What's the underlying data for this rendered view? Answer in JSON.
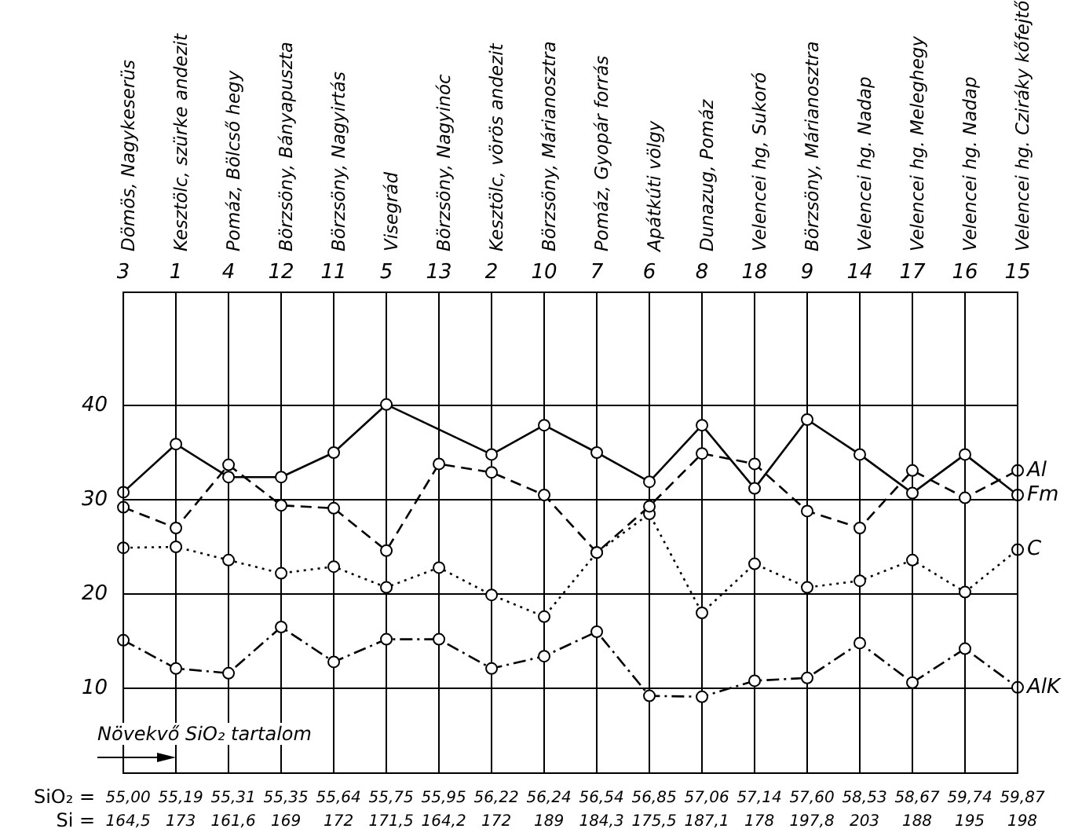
{
  "chart_data": {
    "type": "line",
    "categories": [
      "Dömös, Nagykeserüs",
      "Kesztölc, szürke andezit",
      "Pomáz, Bölcső hegy",
      "Börzsöny, Bányapuszta",
      "Börzsöny, Nagyirtás",
      "Visegrád",
      "Börzsöny, Nagyinóc",
      "Kesztölc, vörös andezit",
      "Börzsöny, Márianosztra",
      "Pomáz, Gyopár forrás",
      "Apátkúti völgy",
      "Dunazug, Pomáz",
      "Velencei hg, Sukoró",
      "Börzsöny, Márianosztra",
      "Velencei hg. Nadap",
      "Velencei hg. Meleghegy",
      "Velencei hg. Nadap",
      "Velencei hg. Cziráky kőfejtő"
    ],
    "series": [
      {
        "name": "Fm",
        "color": "#000000",
        "line_style": "solid",
        "values": [
          30.8,
          35.9,
          32.4,
          32.4,
          35.0,
          40.1,
          null,
          34.8,
          37.9,
          35.0,
          31.9,
          37.9,
          31.2,
          38.5,
          34.8,
          30.7,
          34.8,
          30.5
        ]
      },
      {
        "name": "Al",
        "color": "#000000",
        "line_style": "dashed",
        "values": [
          29.2,
          27.0,
          33.7,
          29.4,
          29.1,
          24.6,
          33.8,
          32.9,
          30.5,
          24.4,
          29.3,
          34.9,
          33.8,
          28.8,
          27.0,
          33.1,
          30.2,
          33.1
        ]
      },
      {
        "name": "C",
        "color": "#000000",
        "line_style": "dotted",
        "values": [
          24.9,
          25.0,
          23.6,
          22.2,
          22.9,
          20.7,
          22.8,
          19.9,
          17.6,
          24.4,
          28.5,
          18.0,
          23.2,
          20.7,
          21.4,
          23.6,
          20.2,
          24.7
        ]
      },
      {
        "name": "AlK",
        "color": "#000000",
        "line_style": "dashdot",
        "values": [
          15.1,
          12.1,
          11.6,
          16.5,
          12.8,
          15.2,
          15.2,
          12.1,
          13.4,
          16.0,
          9.2,
          9.1,
          10.8,
          11.1,
          14.8,
          10.6,
          14.2,
          10.1
        ]
      }
    ],
    "ylim": [
      1,
      52
    ],
    "yticks": [
      10,
      20,
      30,
      40
    ],
    "grid": true,
    "legend": false,
    "marker": "circle",
    "tick_labels": "y",
    "annotations": [
      "Növekvő SiO₂ tartalom",
      "SiO₂ =",
      "Si =",
      "3",
      "1",
      "4",
      "12",
      "11",
      "5",
      "13",
      "2",
      "10",
      "7",
      "6",
      "8",
      "18",
      "9",
      "14",
      "17",
      "16",
      "15",
      "55,00",
      "55,19",
      "55,31",
      "55,35",
      "55,64",
      "55,75",
      "55,95",
      "56,22",
      "56,24",
      "56,54",
      "56,85",
      "57,06",
      "57,14",
      "57,60",
      "58,53",
      "58,67",
      "59,74",
      "59,87",
      "164,5",
      "173",
      "161,6",
      "169",
      "172",
      "171,5",
      "164,2",
      "172",
      "189",
      "184,3",
      "175,5",
      "187,1",
      "178",
      "197,8",
      "203",
      "188",
      "195",
      "198"
    ]
  }
}
